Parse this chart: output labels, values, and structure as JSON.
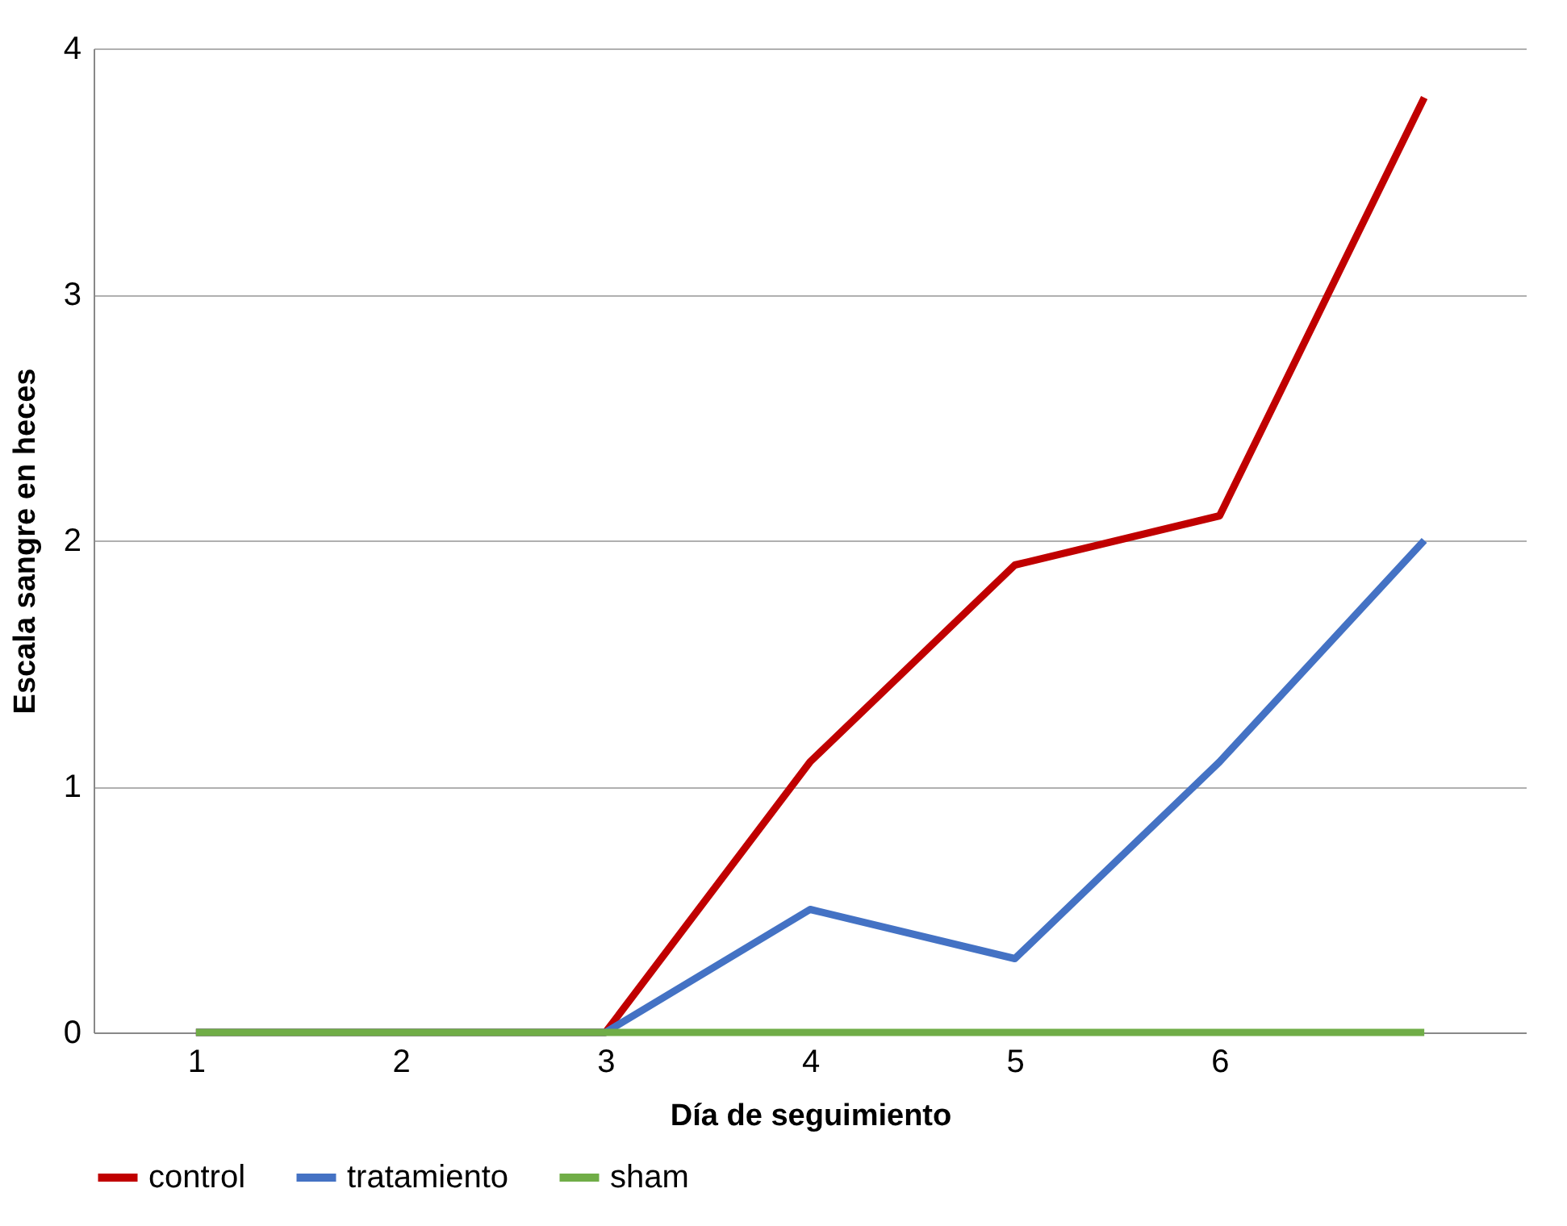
{
  "chart_data": {
    "type": "line",
    "xlabel": "Día de seguimiento",
    "ylabel": "Escala sangre en heces",
    "categories": [
      "1",
      "2",
      "3",
      "4",
      "5",
      "6",
      null
    ],
    "series": [
      {
        "name": "control",
        "color": "#c00000",
        "values": [
          0,
          0,
          0,
          1.1,
          1.9,
          2.1,
          3.8
        ]
      },
      {
        "name": "tratamiento",
        "color": "#4472c4",
        "values": [
          0,
          0,
          0,
          0.5,
          0.3,
          1.1,
          2.0
        ]
      },
      {
        "name": "sham",
        "color": "#70ad47",
        "values": [
          0,
          0,
          0,
          0,
          0,
          0,
          0
        ]
      }
    ],
    "ylim": [
      0,
      4
    ],
    "yticks": [
      0,
      1,
      2,
      3,
      4
    ],
    "grid": "y",
    "legend": "bottom",
    "marker": "none",
    "line_style": "solid"
  }
}
